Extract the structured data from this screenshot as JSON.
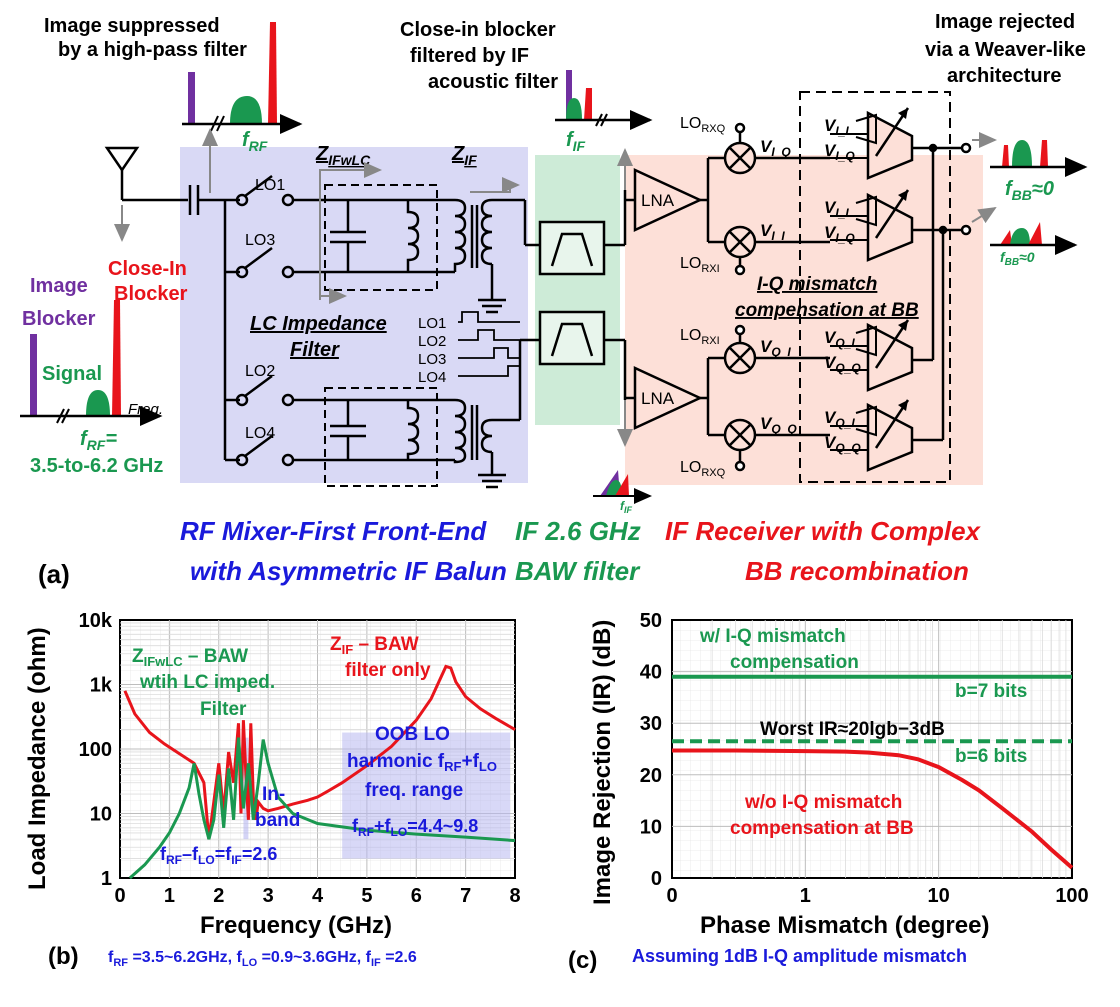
{
  "colors": {
    "purple": "#7030a0",
    "green": "#1a9850",
    "red": "#e8141b",
    "blue": "#1a1adb",
    "rf_bg": "#d9d9f5",
    "baw_bg": "#cdebd7",
    "ifrx_bg": "#fde0d8",
    "grid": "#d0d0d0"
  },
  "diagram_a": {
    "panel_label": "(a)",
    "ann_image_suppressed": [
      "Image suppressed",
      "by a high-pass filter"
    ],
    "ann_close_in": [
      "Close-in blocker",
      "filtered by IF",
      "acoustic filter"
    ],
    "ann_image_rejected": [
      "Image rejected",
      "via a Weaver-like",
      "architecture"
    ],
    "f_rf": "f",
    "f_rf_sub": "RF",
    "f_if": "f",
    "f_if_sub": "IF",
    "f_bb": "f",
    "f_bb_sub": "BB",
    "f_bb_val": "≈0",
    "image_label": [
      "Image",
      "Blocker"
    ],
    "closein_label": [
      "Close-In",
      "Blocker"
    ],
    "signal_label": "Signal",
    "freq_label": "Freq.",
    "frf_eq": "=",
    "frf_range": "3.5-to-6.2 GHz",
    "z_ifwlc": "Z",
    "z_ifwlc_sub": "IFwLC",
    "z_if": "Z",
    "z_if_sub": "IF",
    "lo_labels": [
      "LO1",
      "LO3",
      "LO2",
      "LO4"
    ],
    "lo_wave_labels": [
      "LO1",
      "LO2",
      "LO3",
      "LO4"
    ],
    "lc_label": [
      "LC Impedance",
      "Filter"
    ],
    "lna": "LNA",
    "lo_rx": {
      "rxq": "LO",
      "rxq_sub": "RXQ",
      "rxi": "LO",
      "rxi_sub": "RXI"
    },
    "v_labels": {
      "v": "V",
      "i_q": "I_Q",
      "i_i": "I_I",
      "q_i": "Q_I",
      "q_q": "Q_Q"
    },
    "iq_comp": [
      "I-Q mismatch",
      "compensation at BB"
    ],
    "bottom_rf": [
      "RF Mixer-First Front-End",
      "with Asymmetric IF Balun"
    ],
    "bottom_baw": [
      "IF 2.6 GHz",
      "BAW filter"
    ],
    "bottom_ifrx": [
      "IF Receiver with Complex",
      "BB recombination"
    ]
  },
  "chart_b": {
    "panel_label": "(b)",
    "type": "line",
    "xlabel": "Frequency (GHz)",
    "ylabel": "Load Impedance (ohm)",
    "xlim": [
      0,
      8
    ],
    "ylim": [
      1,
      10000
    ],
    "yscale": "log",
    "x_ticks": [
      "0",
      "1",
      "2",
      "3",
      "4",
      "5",
      "6",
      "7",
      "8"
    ],
    "y_ticks": [
      "1",
      "10",
      "100",
      "1k",
      "10k"
    ],
    "series": [
      {
        "name": "Z_IF – BAW filter only",
        "color": "#e8141b",
        "x": [
          0.1,
          0.3,
          0.6,
          0.9,
          1.2,
          1.5,
          1.7,
          1.8,
          1.9,
          2.0,
          2.1,
          2.2,
          2.3,
          2.4,
          2.45,
          2.5,
          2.55,
          2.6,
          2.65,
          2.7,
          2.75,
          2.8,
          2.9,
          3.0,
          3.2,
          3.5,
          3.8,
          4.0,
          4.2,
          4.5,
          5.0,
          5.5,
          6.0,
          6.3,
          6.6,
          6.7,
          6.8,
          7.0,
          7.3,
          7.6,
          8.0
        ],
        "y": [
          800,
          350,
          180,
          120,
          85,
          60,
          30,
          4,
          15,
          60,
          10,
          90,
          30,
          250,
          10,
          280,
          40,
          8,
          250,
          18,
          8,
          15,
          12,
          11,
          12,
          14,
          16,
          18,
          22,
          30,
          55,
          110,
          280,
          600,
          1900,
          1800,
          1100,
          650,
          420,
          300,
          200
        ]
      },
      {
        "name": "Z_IFwLC – BAW wtih LC imped. Filter",
        "color": "#1a9850",
        "x": [
          0.2,
          0.5,
          0.8,
          1.0,
          1.2,
          1.4,
          1.5,
          1.6,
          1.7,
          1.8,
          1.9,
          2.0,
          2.1,
          2.2,
          2.3,
          2.4,
          2.5,
          2.6,
          2.7,
          2.8,
          2.9,
          3.0,
          3.2,
          3.5,
          4.0,
          5.0,
          6.0,
          7.0,
          8.0
        ],
        "y": [
          1,
          1.6,
          3,
          5,
          10,
          25,
          60,
          20,
          8,
          4,
          8,
          40,
          6,
          50,
          8,
          150,
          12,
          60,
          8,
          30,
          140,
          60,
          18,
          10,
          7,
          5.5,
          4.8,
          4.3,
          3.8
        ]
      }
    ],
    "annotations": {
      "z_ifwlc": [
        "Z",
        "IFwLC",
        " – BAW",
        "wtih LC imped.",
        "Filter"
      ],
      "z_if": [
        "Z",
        "IF",
        " – BAW",
        "filter only"
      ],
      "oob": [
        "OOB LO",
        "harmonic f",
        "RF",
        "+f",
        "LO",
        "freq. range"
      ],
      "inband": [
        "In-",
        "band"
      ],
      "frf_flo": [
        "f",
        "RF",
        "–f",
        "LO",
        "=f",
        "IF",
        "=2.6"
      ],
      "frf_plus": [
        "f",
        "RF",
        "+f",
        "LO",
        "=4.4~9.8"
      ]
    },
    "caption": [
      "f",
      "RF",
      " =3.5~6.2GHz, f",
      "LO",
      " =0.9~3.6GHz, f",
      "IF",
      " =2.6"
    ]
  },
  "chart_c": {
    "panel_label": "(c)",
    "type": "line",
    "xlabel": "Phase Mismatch (degree)",
    "ylabel": "Image Rejection (IR) (dB)",
    "xscale": "log",
    "xlim": [
      0.1,
      100
    ],
    "ylim": [
      0,
      50
    ],
    "x_ticks": [
      "0",
      "1",
      "10",
      "100"
    ],
    "y_ticks": [
      "0",
      "10",
      "20",
      "30",
      "40",
      "50"
    ],
    "series": [
      {
        "name": "b=7 bits",
        "color": "#1a9850",
        "style": "solid",
        "x": [
          0.1,
          100
        ],
        "y": [
          39,
          39
        ]
      },
      {
        "name": "b=6 bits",
        "color": "#1a9850",
        "style": "dashed",
        "x": [
          0.1,
          100
        ],
        "y": [
          26.5,
          26.5
        ]
      },
      {
        "name": "w/o I-Q mismatch compensation at BB",
        "color": "#e8141b",
        "style": "solid",
        "x": [
          0.1,
          0.3,
          1,
          2,
          3,
          5,
          7,
          10,
          15,
          20,
          30,
          50,
          70,
          100
        ],
        "y": [
          24.7,
          24.7,
          24.6,
          24.5,
          24.3,
          23.8,
          23.0,
          21.5,
          19.0,
          17.0,
          13.5,
          9.0,
          5.5,
          2
        ]
      }
    ],
    "annotations": {
      "with_comp": [
        "w/ I-Q mismatch",
        "compensation"
      ],
      "b7": "b=7 bits",
      "worst": "Worst IR≈20lgb−3dB",
      "b6": "b=6 bits",
      "without_comp": [
        "w/o I-Q mismatch",
        "compensation at BB"
      ]
    },
    "caption": "Assuming 1dB I-Q amplitude mismatch"
  }
}
